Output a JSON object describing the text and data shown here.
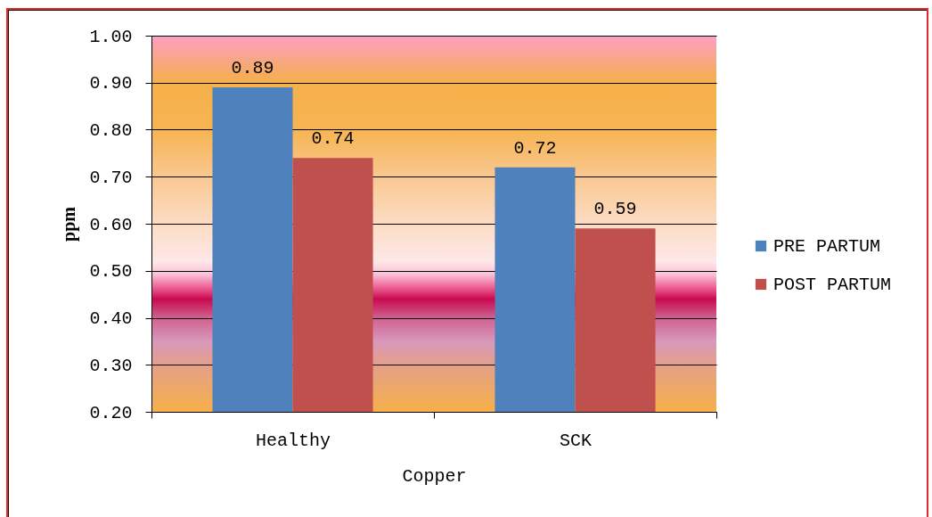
{
  "chart_data": {
    "type": "bar",
    "xlabel": "Copper",
    "ylabel": "ppm",
    "categories": [
      "Healthy",
      "SCK"
    ],
    "series": [
      {
        "name": "PRE PARTUM",
        "color": "#4f81bd",
        "values": [
          0.89,
          0.72
        ]
      },
      {
        "name": "POST PARTUM",
        "color": "#c0504d",
        "values": [
          0.74,
          0.59
        ]
      }
    ],
    "ylim": [
      0.2,
      1.0
    ],
    "yticks": [
      {
        "value": 0.2,
        "label": "0.20"
      },
      {
        "value": 0.3,
        "label": "0.30"
      },
      {
        "value": 0.4,
        "label": "0.40"
      },
      {
        "value": 0.5,
        "label": "0.50"
      },
      {
        "value": 0.6,
        "label": "0.60"
      },
      {
        "value": 0.7,
        "label": "0.70"
      },
      {
        "value": 0.8,
        "label": "0.80"
      },
      {
        "value": 0.9,
        "label": "0.90"
      },
      {
        "value": 1.0,
        "label": "1.00"
      }
    ],
    "grid": "y",
    "legend": "right",
    "data_labels": true
  }
}
